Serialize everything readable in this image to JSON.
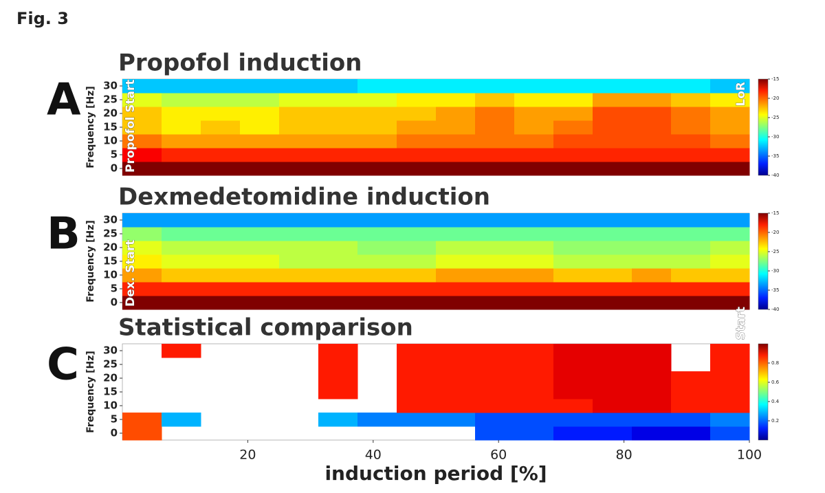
{
  "figure_label": "Fig. 3",
  "chart_data": [
    {
      "type": "heatmap",
      "label": "A",
      "title": "Propofol induction",
      "y_label": "Frequency [Hz]",
      "xbins": [
        0,
        6.25,
        12.5,
        18.75,
        25,
        31.25,
        37.5,
        43.75,
        50,
        56.25,
        62.5,
        68.75,
        75,
        81.25,
        87.5,
        93.75,
        100
      ],
      "ybins": [
        -2.5,
        2.5,
        7.5,
        12.5,
        17.5,
        22.5,
        27.5,
        32.5
      ],
      "xlim": [
        0,
        100
      ],
      "ylim": [
        -2.5,
        32.5
      ],
      "yticks": [
        0,
        5,
        10,
        15,
        20,
        25,
        30
      ],
      "colormap": "jet",
      "clim": [
        -40,
        -15
      ],
      "cticks": [
        -15,
        -20,
        -25,
        -30,
        -35,
        -40
      ],
      "annotations": [
        "Propofol Start",
        "LoR"
      ],
      "values": [
        [
          -15,
          -15,
          -15,
          -15,
          -15,
          -15,
          -15,
          -15,
          -15,
          -15,
          -15,
          -15,
          -15,
          -15,
          -15,
          -15
        ],
        [
          -18,
          -19,
          -19,
          -19,
          -19,
          -19,
          -19,
          -19,
          -19,
          -19,
          -19,
          -19,
          -19,
          -19,
          -19,
          -19
        ],
        [
          -21,
          -22,
          -22,
          -22,
          -22,
          -22,
          -22,
          -21,
          -21,
          -21,
          -21,
          -20,
          -20,
          -20,
          -20,
          -21
        ],
        [
          -23,
          -24,
          -23,
          -24,
          -23,
          -23,
          -23,
          -22,
          -22,
          -21,
          -22,
          -21,
          -20,
          -20,
          -21,
          -22
        ],
        [
          -23,
          -24,
          -24,
          -24,
          -23,
          -23,
          -23,
          -23,
          -22,
          -21,
          -22,
          -22,
          -20,
          -20,
          -21,
          -22
        ],
        [
          -25,
          -26,
          -26,
          -26,
          -25,
          -25,
          -25,
          -24,
          -24,
          -23,
          -24,
          -24,
          -22,
          -22,
          -23,
          -24
        ],
        [
          -32,
          -32,
          -32,
          -32,
          -32,
          -32,
          -31,
          -31,
          -31,
          -31,
          -31,
          -31,
          -31,
          -31,
          -31,
          -32
        ]
      ]
    },
    {
      "type": "heatmap",
      "label": "B",
      "title": "Dexmedetomidine induction",
      "y_label": "Frequency [Hz]",
      "xbins": [
        0,
        6.25,
        12.5,
        18.75,
        25,
        31.25,
        37.5,
        43.75,
        50,
        56.25,
        62.5,
        68.75,
        75,
        81.25,
        87.5,
        93.75,
        100
      ],
      "ybins": [
        -2.5,
        2.5,
        7.5,
        12.5,
        17.5,
        22.5,
        27.5,
        32.5
      ],
      "xlim": [
        0,
        100
      ],
      "ylim": [
        -2.5,
        32.5
      ],
      "yticks": [
        0,
        5,
        10,
        15,
        20,
        25,
        30
      ],
      "colormap": "jet",
      "clim": [
        -40,
        -15
      ],
      "cticks": [
        -15,
        -20,
        -25,
        -30,
        -35,
        -40
      ],
      "annotations": [
        "Dex. Start",
        "Propofol Start"
      ],
      "values": [
        [
          -15,
          -15,
          -15,
          -15,
          -15,
          -15,
          -15,
          -15,
          -15,
          -15,
          -15,
          -15,
          -15,
          -15,
          -15,
          -15
        ],
        [
          -19,
          -19,
          -19,
          -19,
          -19,
          -19,
          -19,
          -19,
          -19,
          -19,
          -19,
          -19,
          -19,
          -19,
          -19,
          -19
        ],
        [
          -22,
          -23,
          -23,
          -23,
          -23,
          -23,
          -23,
          -23,
          -22,
          -22,
          -22,
          -23,
          -23,
          -22,
          -23,
          -23
        ],
        [
          -24,
          -25,
          -25,
          -25,
          -26,
          -26,
          -26,
          -26,
          -25,
          -25,
          -25,
          -26,
          -26,
          -26,
          -26,
          -25
        ],
        [
          -25,
          -26,
          -26,
          -26,
          -26,
          -26,
          -27,
          -27,
          -26,
          -26,
          -26,
          -27,
          -27,
          -27,
          -27,
          -26
        ],
        [
          -27,
          -28,
          -28,
          -28,
          -28,
          -28,
          -28,
          -28,
          -28,
          -28,
          -28,
          -28,
          -28,
          -28,
          -28,
          -28
        ],
        [
          -33,
          -33,
          -33,
          -33,
          -33,
          -33,
          -33,
          -33,
          -33,
          -33,
          -33,
          -33,
          -33,
          -33,
          -33,
          -33
        ]
      ]
    },
    {
      "type": "heatmap",
      "label": "C",
      "title": "Statistical comparison",
      "y_label": "Frequency [Hz]",
      "x_label": "induction period [%]",
      "xbins": [
        0,
        6.25,
        12.5,
        18.75,
        25,
        31.25,
        37.5,
        43.75,
        50,
        56.25,
        62.5,
        68.75,
        75,
        81.25,
        87.5,
        93.75,
        100
      ],
      "ybins": [
        -2.5,
        2.5,
        7.5,
        12.5,
        17.5,
        22.5,
        27.5,
        32.5
      ],
      "xlim": [
        0,
        100
      ],
      "ylim": [
        -2.5,
        32.5
      ],
      "xticks": [
        20,
        40,
        60,
        80,
        100
      ],
      "yticks": [
        0,
        5,
        10,
        15,
        20,
        25,
        30
      ],
      "colormap": "jet",
      "clim": [
        0,
        1
      ],
      "cticks": [
        0.8,
        0.6,
        0.4,
        0.2
      ],
      "values": [
        [
          0.8,
          null,
          null,
          null,
          null,
          null,
          null,
          null,
          null,
          0.2,
          0.2,
          0.15,
          0.15,
          0.1,
          0.1,
          0.2
        ],
        [
          0.8,
          0.3,
          null,
          null,
          null,
          0.3,
          0.25,
          0.25,
          0.25,
          0.2,
          0.2,
          0.2,
          0.2,
          0.2,
          0.2,
          0.25
        ],
        [
          null,
          null,
          null,
          null,
          null,
          null,
          null,
          0.85,
          0.85,
          0.85,
          0.85,
          0.85,
          0.9,
          0.9,
          0.85,
          0.85
        ],
        [
          null,
          null,
          null,
          null,
          null,
          0.85,
          null,
          0.85,
          0.85,
          0.85,
          0.85,
          0.9,
          0.9,
          0.9,
          0.85,
          0.85
        ],
        [
          null,
          null,
          null,
          null,
          null,
          0.85,
          null,
          0.85,
          0.85,
          0.85,
          0.85,
          0.9,
          0.9,
          0.9,
          0.85,
          0.85
        ],
        [
          null,
          null,
          null,
          null,
          null,
          0.85,
          null,
          0.85,
          0.85,
          0.85,
          0.85,
          0.9,
          0.9,
          0.9,
          null,
          0.85
        ],
        [
          null,
          0.85,
          null,
          null,
          null,
          0.85,
          null,
          0.85,
          0.85,
          0.85,
          0.85,
          0.9,
          0.9,
          0.9,
          null,
          0.85
        ]
      ]
    }
  ]
}
